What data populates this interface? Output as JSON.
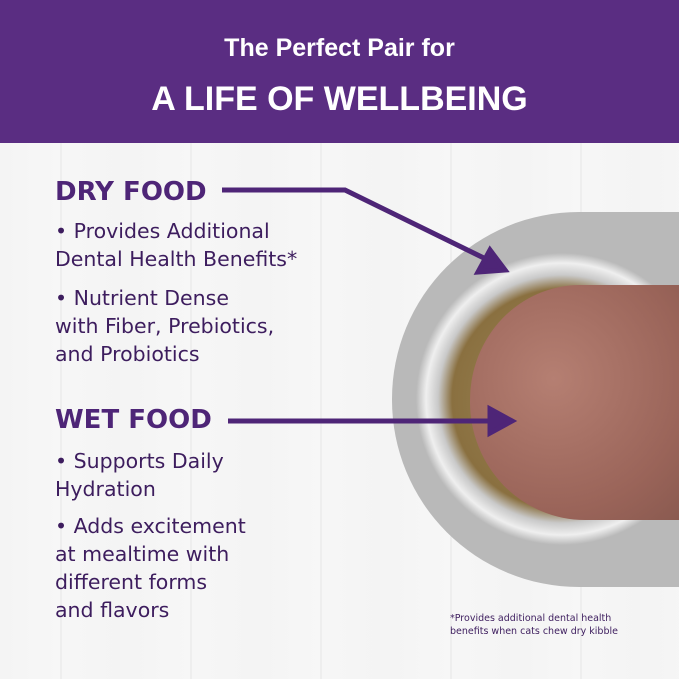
{
  "banner": {
    "line1": "The Perfect Pair for",
    "line2": "A LIFE OF WELLBEING"
  },
  "dry": {
    "heading": "DRY FOOD",
    "bullets": [
      "• Provides Additional",
      "Dental Health Benefits*",
      "• Nutrient Dense",
      "with Fiber, Prebiotics,",
      "and Probiotics"
    ]
  },
  "wet": {
    "heading": "WET FOOD",
    "bullets": [
      "• Supports Daily",
      "Hydration",
      "• Adds excitement",
      "at mealtime with",
      "different forms",
      "and flavors"
    ]
  },
  "footnote": [
    "*Provides additional dental health",
    "benefits when cats chew dry kibble"
  ],
  "colors": {
    "brand": "#5a2d82"
  }
}
